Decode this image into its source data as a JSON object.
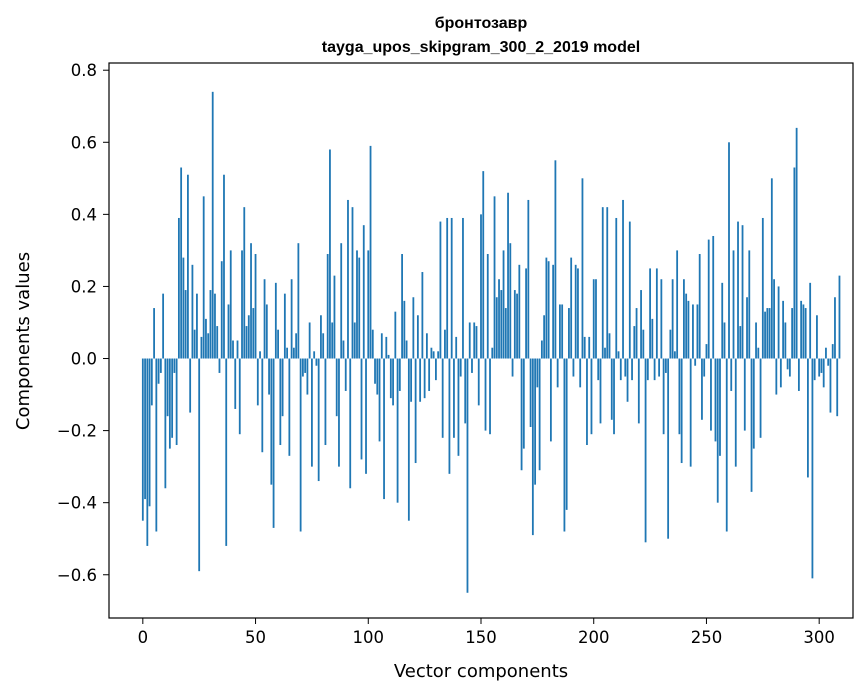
{
  "chart_data": {
    "type": "bar",
    "title": "бронтозавр",
    "subtitle": "tayga_upos_skipgram_300_2_2019 model",
    "xlabel": "Vector components",
    "ylabel": "Components values",
    "xlim": [
      -15,
      315
    ],
    "ylim": [
      -0.72,
      0.82
    ],
    "xticks": [
      0,
      50,
      100,
      150,
      200,
      250,
      300
    ],
    "yticks": [
      -0.6,
      -0.4,
      -0.2,
      0.0,
      0.2,
      0.4,
      0.6,
      0.8
    ],
    "ytick_labels": [
      "−0.6",
      "−0.4",
      "−0.2",
      "0.0",
      "0.2",
      "0.4",
      "0.6",
      "0.8"
    ],
    "grid": false,
    "bar_color": "#1f77b4",
    "values": [
      -0.45,
      -0.39,
      -0.52,
      -0.41,
      -0.13,
      0.14,
      -0.48,
      -0.07,
      -0.04,
      0.18,
      -0.36,
      -0.16,
      -0.25,
      -0.22,
      -0.04,
      -0.24,
      0.39,
      0.53,
      0.28,
      0.19,
      0.51,
      -0.15,
      0.26,
      0.08,
      0.18,
      -0.59,
      0.06,
      0.45,
      0.11,
      0.07,
      0.19,
      0.74,
      0.18,
      0.09,
      -0.04,
      0.27,
      0.51,
      -0.52,
      0.15,
      0.3,
      0.05,
      -0.14,
      0.05,
      -0.21,
      0.3,
      0.42,
      0.09,
      0.12,
      0.32,
      0.14,
      0.29,
      -0.13,
      0.02,
      -0.26,
      0.22,
      0.15,
      -0.1,
      -0.35,
      -0.47,
      0.21,
      0.08,
      -0.24,
      -0.16,
      0.18,
      0.03,
      -0.27,
      0.22,
      0.03,
      0.07,
      0.32,
      -0.48,
      -0.05,
      -0.04,
      -0.1,
      0.1,
      -0.3,
      0.02,
      -0.02,
      -0.34,
      0.12,
      0.07,
      -0.24,
      0.29,
      0.58,
      0.1,
      0.23,
      -0.16,
      -0.3,
      0.32,
      0.05,
      -0.09,
      0.44,
      -0.36,
      0.42,
      0.1,
      0.3,
      0.28,
      -0.28,
      0.37,
      -0.32,
      0.3,
      0.59,
      0.08,
      -0.07,
      -0.1,
      -0.23,
      0.07,
      -0.39,
      0.06,
      0.01,
      -0.11,
      -0.13,
      0.13,
      -0.4,
      -0.09,
      0.29,
      0.16,
      0.05,
      -0.45,
      -0.12,
      0.17,
      -0.29,
      0.12,
      -0.12,
      0.24,
      -0.11,
      0.07,
      -0.09,
      0.03,
      0.02,
      -0.06,
      0.02,
      0.38,
      -0.22,
      0.08,
      0.39,
      -0.32,
      0.39,
      -0.22,
      0.06,
      -0.27,
      -0.05,
      0.39,
      -0.18,
      -0.65,
      0.1,
      -0.04,
      0.1,
      0.09,
      -0.13,
      0.4,
      0.52,
      -0.2,
      0.29,
      -0.21,
      0.03,
      0.45,
      0.17,
      0.22,
      0.19,
      0.3,
      0.14,
      0.46,
      0.32,
      -0.05,
      0.19,
      0.18,
      0.26,
      -0.31,
      -0.25,
      0.25,
      0.44,
      -0.19,
      -0.49,
      -0.35,
      -0.08,
      -0.31,
      0.05,
      0.12,
      0.28,
      0.27,
      -0.23,
      0.26,
      0.55,
      -0.08,
      0.15,
      0.15,
      -0.48,
      -0.42,
      0.14,
      0.28,
      -0.05,
      0.26,
      0.25,
      -0.08,
      0.5,
      0.06,
      -0.24,
      0.06,
      -0.21,
      0.22,
      0.22,
      -0.06,
      -0.18,
      0.42,
      0.03,
      0.42,
      0.07,
      -0.17,
      -0.21,
      0.39,
      0.02,
      -0.06,
      0.44,
      -0.05,
      -0.12,
      0.38,
      -0.06,
      0.09,
      0.14,
      -0.18,
      0.19,
      0.08,
      -0.51,
      -0.06,
      0.25,
      0.11,
      -0.06,
      0.25,
      -0.05,
      0.22,
      -0.21,
      -0.04,
      -0.5,
      0.08,
      0.22,
      0.02,
      0.3,
      -0.21,
      -0.29,
      0.22,
      0.18,
      0.16,
      -0.3,
      0.15,
      -0.02,
      0.15,
      0.29,
      -0.17,
      -0.05,
      0.04,
      0.33,
      -0.2,
      0.34,
      -0.23,
      -0.4,
      -0.27,
      0.21,
      0.1,
      -0.48,
      0.6,
      -0.09,
      0.3,
      -0.3,
      0.38,
      0.09,
      0.37,
      -0.2,
      0.17,
      0.3,
      -0.37,
      -0.25,
      0.1,
      0.03,
      -0.22,
      0.39,
      0.13,
      0.14,
      0.14,
      0.5,
      0.22,
      -0.1,
      0.2,
      -0.08,
      0.16,
      0.1,
      -0.03,
      -0.05,
      0.14,
      0.53,
      0.64,
      -0.09,
      0.16,
      0.15,
      0.14,
      -0.33,
      0.21,
      -0.61,
      -0.06,
      0.12,
      -0.05,
      -0.04,
      -0.08,
      0.03,
      -0.02,
      -0.15,
      0.04,
      0.17,
      -0.16,
      0.23
    ]
  }
}
